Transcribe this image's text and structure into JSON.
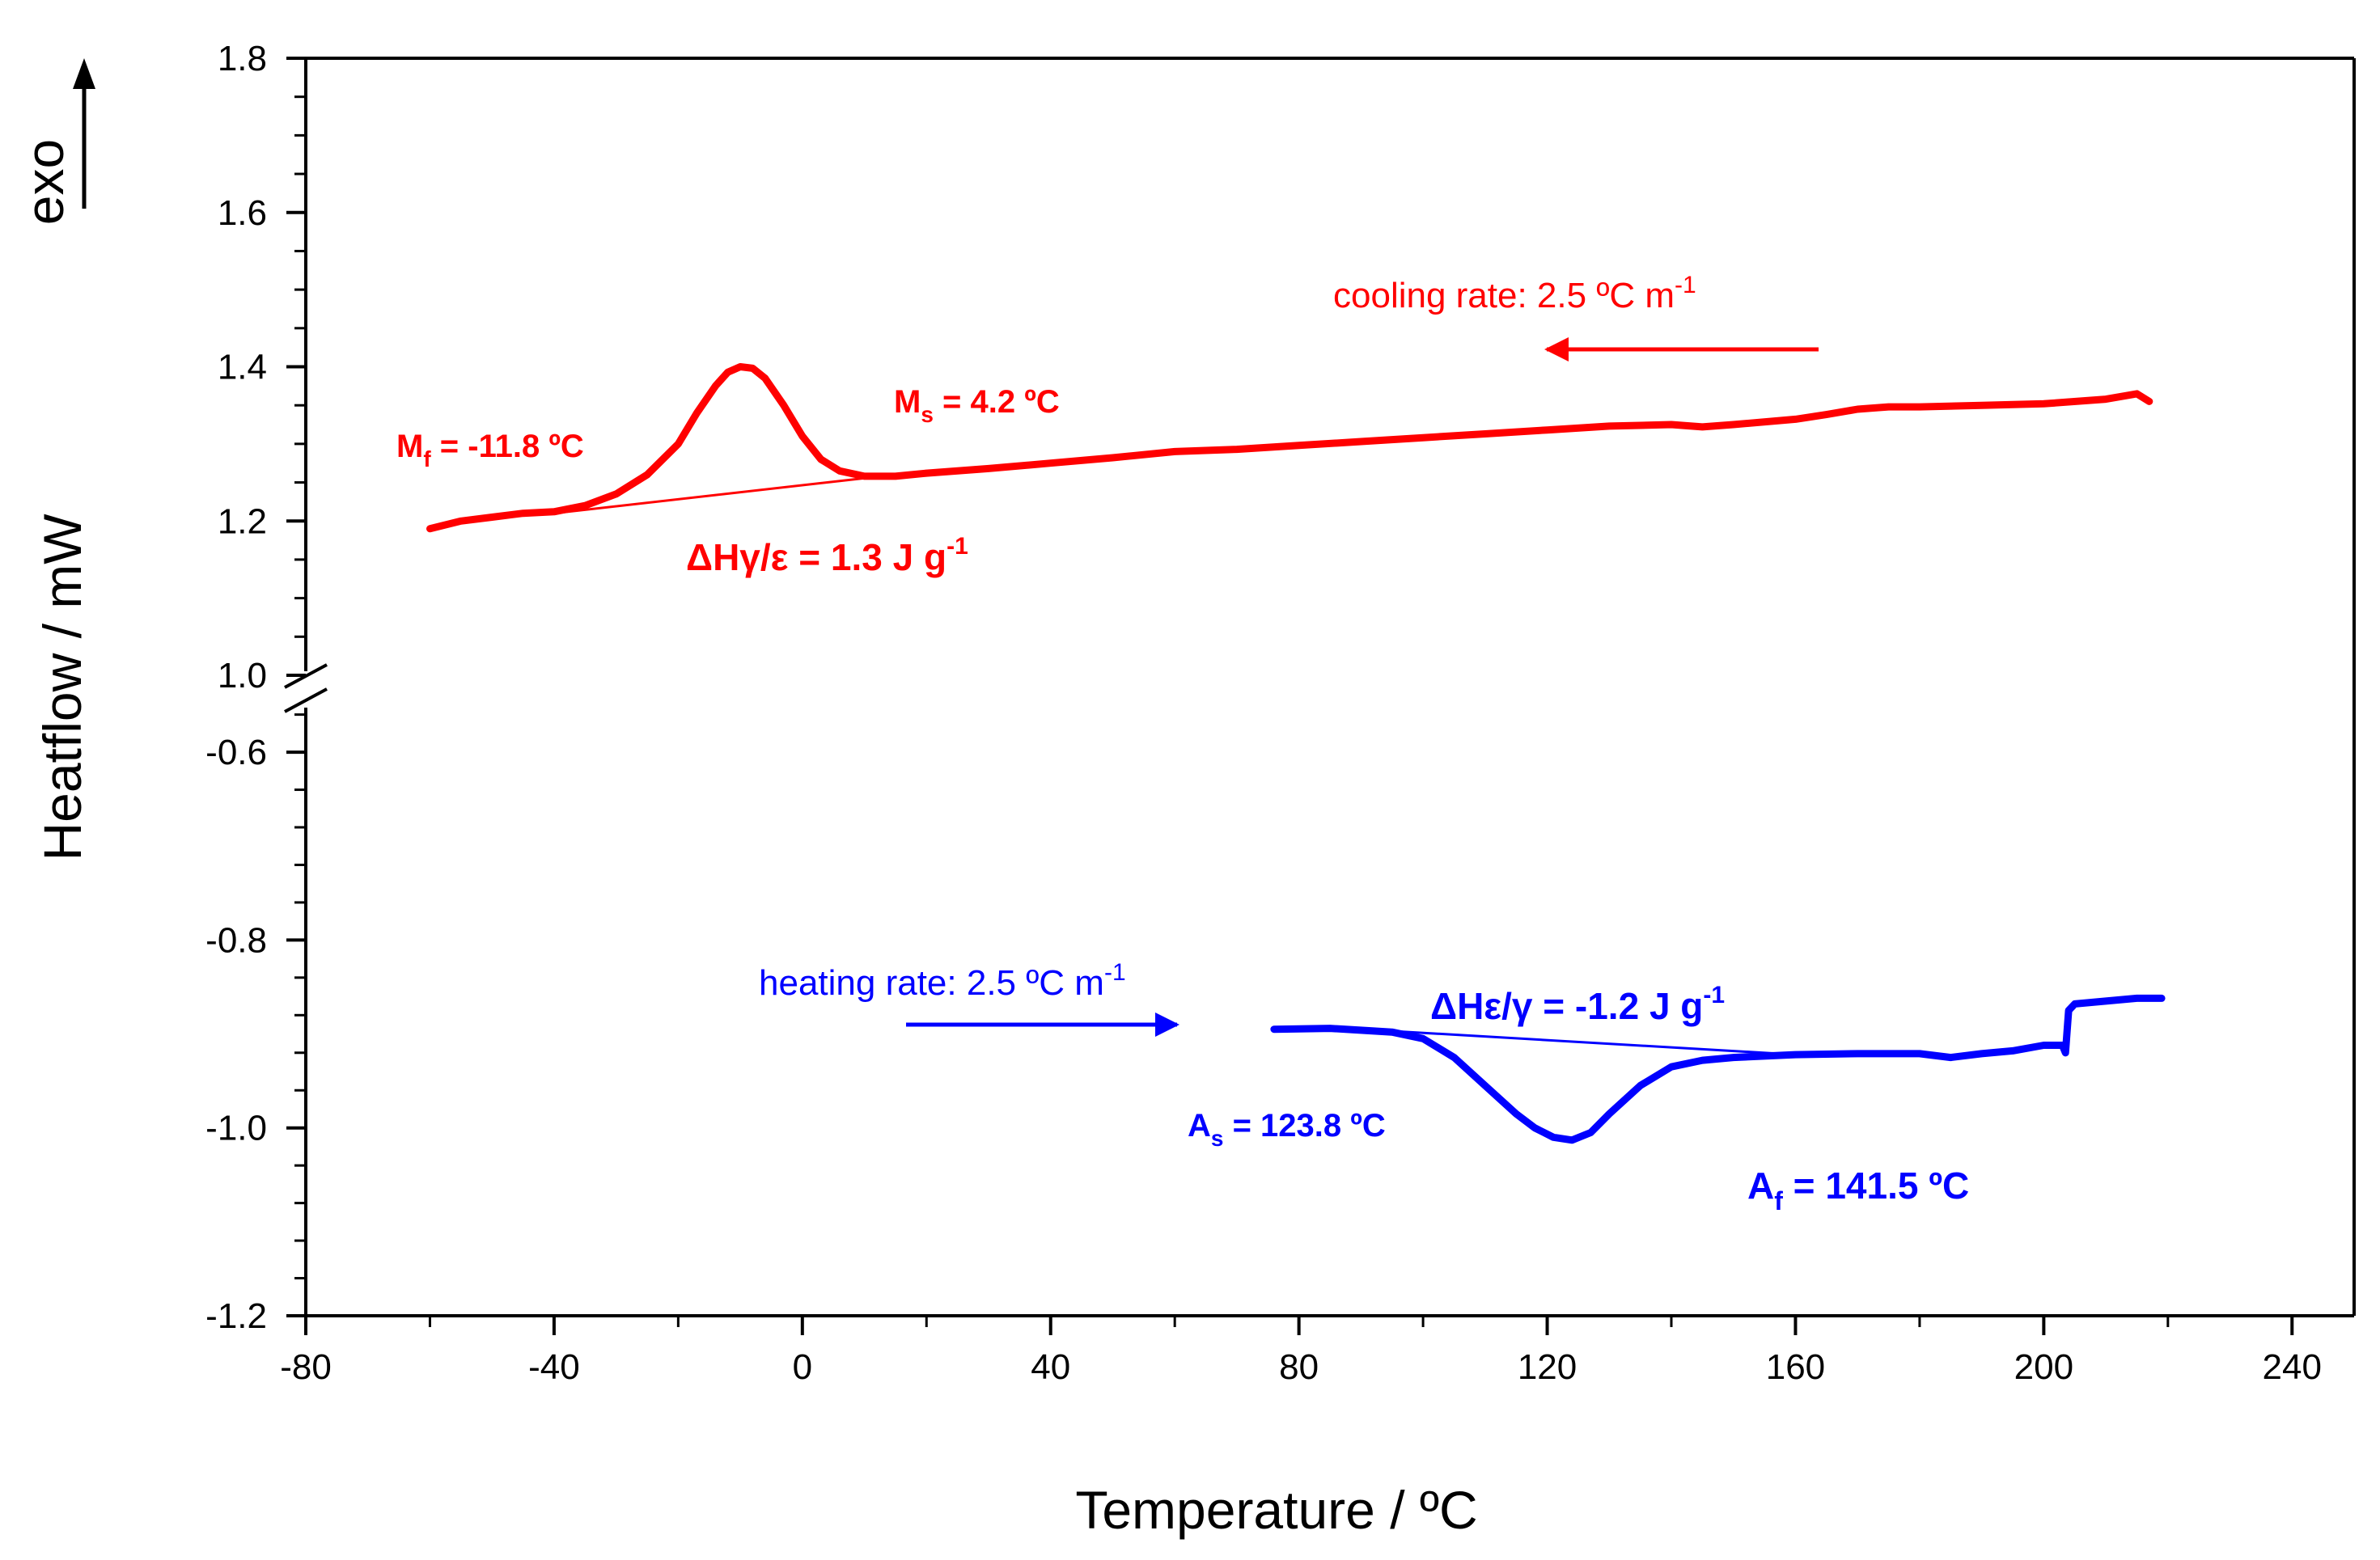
{
  "chart_data": {
    "type": "line",
    "xlabel": "Temperature / ºC",
    "ylabel": "Heatflow / mW",
    "exo_label": "exo",
    "xlim": [
      -80,
      250
    ],
    "xticks": [
      -80,
      -40,
      0,
      40,
      80,
      120,
      160,
      200,
      240
    ],
    "xtick_labels": [
      "-80",
      "-40",
      "0",
      "40",
      "80",
      "120",
      "160",
      "200",
      "240"
    ],
    "ylim_upper": [
      1.0,
      1.8
    ],
    "yticks_upper": [
      1.0,
      1.2,
      1.4,
      1.6,
      1.8
    ],
    "ytick_labels_upper": [
      "1.0",
      "1.2",
      "1.4",
      "1.6",
      "1.8"
    ],
    "ylim_lower": [
      -1.2,
      -0.55
    ],
    "yticks_lower": [
      -1.2,
      -1.0,
      -0.8,
      -0.6
    ],
    "ytick_labels_lower": [
      "-1.2",
      "-1.0",
      "-0.8",
      "-0.6"
    ],
    "axis_break": true,
    "grid": false,
    "colors": {
      "cooling": "#ff0000",
      "heating": "#0000ff",
      "axis": "#000000"
    },
    "series": [
      {
        "panel": "upper",
        "color": "#ff0000",
        "x": [
          -60,
          -55,
          -50,
          -45,
          -40,
          -35,
          -30,
          -25,
          -20,
          -17,
          -14,
          -12,
          -10,
          -8,
          -6,
          -3,
          0,
          3,
          6,
          10,
          15,
          20,
          30,
          40,
          50,
          60,
          70,
          80,
          90,
          100,
          110,
          120,
          130,
          140,
          145,
          150,
          160,
          165,
          170,
          175,
          180,
          190,
          200,
          210,
          215,
          217
        ],
        "y": [
          1.19,
          1.2,
          1.205,
          1.21,
          1.212,
          1.22,
          1.235,
          1.26,
          1.3,
          1.34,
          1.375,
          1.393,
          1.4,
          1.398,
          1.385,
          1.35,
          1.31,
          1.28,
          1.265,
          1.258,
          1.258,
          1.262,
          1.268,
          1.275,
          1.282,
          1.29,
          1.293,
          1.298,
          1.303,
          1.308,
          1.313,
          1.318,
          1.323,
          1.325,
          1.322,
          1.325,
          1.332,
          1.338,
          1.345,
          1.348,
          1.348,
          1.35,
          1.352,
          1.358,
          1.365,
          1.355
        ]
      },
      {
        "panel": "upper",
        "color": "#ff0000",
        "role": "baseline",
        "x": [
          -40,
          15
        ],
        "y": [
          1.21,
          1.26
        ]
      },
      {
        "panel": "lower",
        "color": "#0000ff",
        "x": [
          76,
          85,
          95,
          100,
          105,
          110,
          115,
          118,
          121,
          124,
          127,
          130,
          135,
          140,
          145,
          150,
          160,
          170,
          180,
          185,
          190,
          195,
          200,
          203,
          203.5,
          204,
          205,
          210,
          215,
          219
        ],
        "y": [
          -0.895,
          -0.894,
          -0.898,
          -0.905,
          -0.925,
          -0.955,
          -0.985,
          -1.0,
          -1.01,
          -1.013,
          -1.005,
          -0.985,
          -0.955,
          -0.935,
          -0.928,
          -0.925,
          -0.922,
          -0.921,
          -0.921,
          -0.925,
          -0.921,
          -0.918,
          -0.912,
          -0.912,
          -0.92,
          -0.875,
          -0.868,
          -0.865,
          -0.862,
          -0.862
        ]
      },
      {
        "panel": "lower",
        "color": "#0000ff",
        "role": "baseline",
        "x": [
          90,
          160
        ],
        "y": [
          -0.895,
          -0.922
        ]
      }
    ],
    "annotations": {
      "cooling_rate": {
        "prefix": "cooling rate: 2.5 ºC m",
        "sup": "-1"
      },
      "heating_rate": {
        "prefix": "heating rate: 2.5 ºC m",
        "sup": "-1"
      },
      "mf": {
        "main": "M",
        "sub": "f",
        "rest": " = -11.8 ºC"
      },
      "ms": {
        "main": "M",
        "sub": "s",
        "rest": " = 4.2 ºC"
      },
      "dh_cool": {
        "prefix": "ΔHγ/ε = 1.3 J g",
        "sup": "-1"
      },
      "dh_heat": {
        "prefix": "ΔHε/γ = -1.2 J g",
        "sup": "-1"
      },
      "as": {
        "main": "A",
        "sub": "s",
        "rest": " = 123.8 ºC"
      },
      "af": {
        "main": "A",
        "sub": "f",
        "rest": " = 141.5 ºC"
      }
    }
  }
}
